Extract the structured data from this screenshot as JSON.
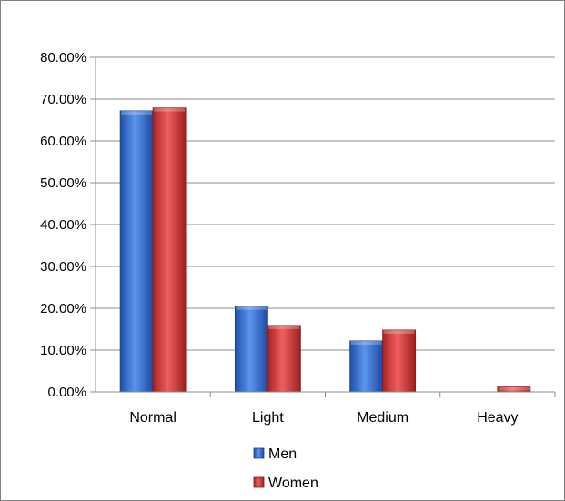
{
  "chart_data": {
    "type": "bar",
    "categories": [
      "Normal",
      "Light",
      "Medium",
      "Heavy"
    ],
    "series": [
      {
        "name": "Men",
        "values": [
          0.672,
          0.205,
          0.122,
          0.0
        ],
        "color": "#2e6fd8"
      },
      {
        "name": "Women",
        "values": [
          0.679,
          0.159,
          0.148,
          0.012
        ],
        "color": "#d93a3a"
      }
    ],
    "ylim": [
      0,
      0.8
    ],
    "yticks": [
      0,
      0.1,
      0.2,
      0.3,
      0.4,
      0.5,
      0.6,
      0.7,
      0.8
    ],
    "ytick_labels": [
      "0.00%",
      "10.00%",
      "20.00%",
      "30.00%",
      "40.00%",
      "50.00%",
      "60.00%",
      "70.00%",
      "80.00%"
    ],
    "grid": true,
    "legend_position": "bottom"
  }
}
